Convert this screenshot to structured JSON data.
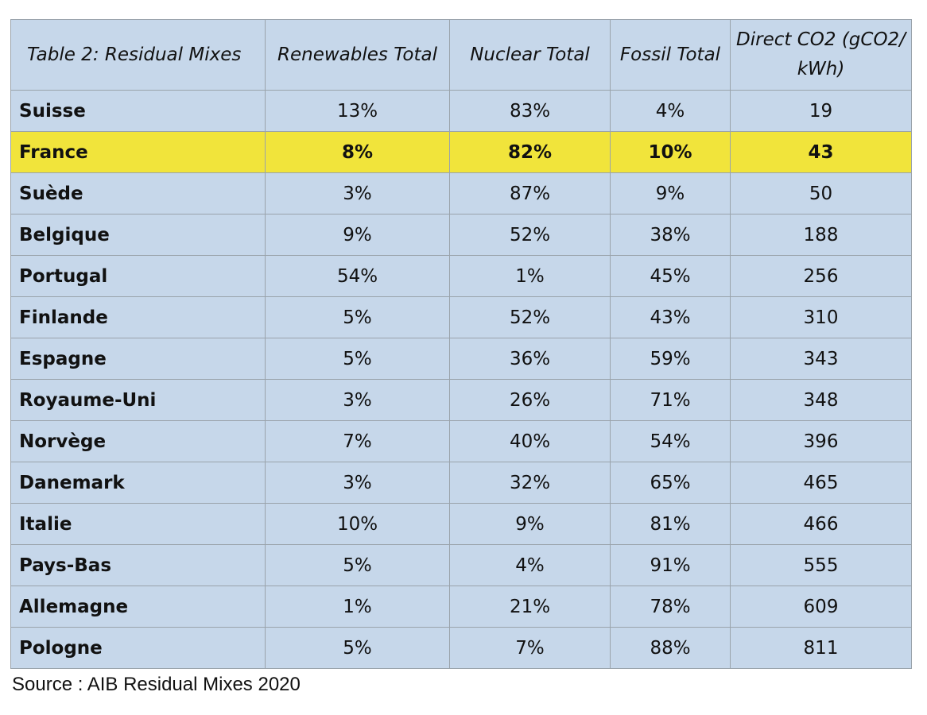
{
  "table": {
    "headers": [
      "Table 2: Residual Mixes",
      "Renewables Total",
      "Nuclear Total",
      "Fossil Total",
      "Direct CO2 (gCO2/ kWh)"
    ],
    "rows": [
      {
        "country": "Suisse",
        "renewables": "13%",
        "nuclear": "83%",
        "fossil": "4%",
        "co2": "19"
      },
      {
        "country": "France",
        "renewables": "8%",
        "nuclear": "82%",
        "fossil": "10%",
        "co2": "43"
      },
      {
        "country": "Suède",
        "renewables": "3%",
        "nuclear": "87%",
        "fossil": "9%",
        "co2": "50"
      },
      {
        "country": "Belgique",
        "renewables": "9%",
        "nuclear": "52%",
        "fossil": "38%",
        "co2": "188"
      },
      {
        "country": "Portugal",
        "renewables": "54%",
        "nuclear": "1%",
        "fossil": "45%",
        "co2": "256"
      },
      {
        "country": "Finlande",
        "renewables": "5%",
        "nuclear": "52%",
        "fossil": "43%",
        "co2": "310"
      },
      {
        "country": "Espagne",
        "renewables": "5%",
        "nuclear": "36%",
        "fossil": "59%",
        "co2": "343"
      },
      {
        "country": "Royaume-Uni",
        "renewables": "3%",
        "nuclear": "26%",
        "fossil": "71%",
        "co2": "348"
      },
      {
        "country": "Norvège",
        "renewables": "7%",
        "nuclear": "40%",
        "fossil": "54%",
        "co2": "396"
      },
      {
        "country": "Danemark",
        "renewables": "3%",
        "nuclear": "32%",
        "fossil": "65%",
        "co2": "465"
      },
      {
        "country": "Italie",
        "renewables": "10%",
        "nuclear": "9%",
        "fossil": "81%",
        "co2": "466"
      },
      {
        "country": "Pays-Bas",
        "renewables": "5%",
        "nuclear": "4%",
        "fossil": "91%",
        "co2": "555"
      },
      {
        "country": "Allemagne",
        "renewables": "1%",
        "nuclear": "21%",
        "fossil": "78%",
        "co2": "609"
      },
      {
        "country": "Pologne",
        "renewables": "5%",
        "nuclear": "7%",
        "fossil": "88%",
        "co2": "811"
      }
    ],
    "highlighted_country": "France"
  },
  "colors": {
    "cell_background": "#c6d7ea",
    "highlight_background": "#f1e43b",
    "border": "#9aa3ab"
  },
  "source": "Source : AIB Residual Mixes 2020"
}
